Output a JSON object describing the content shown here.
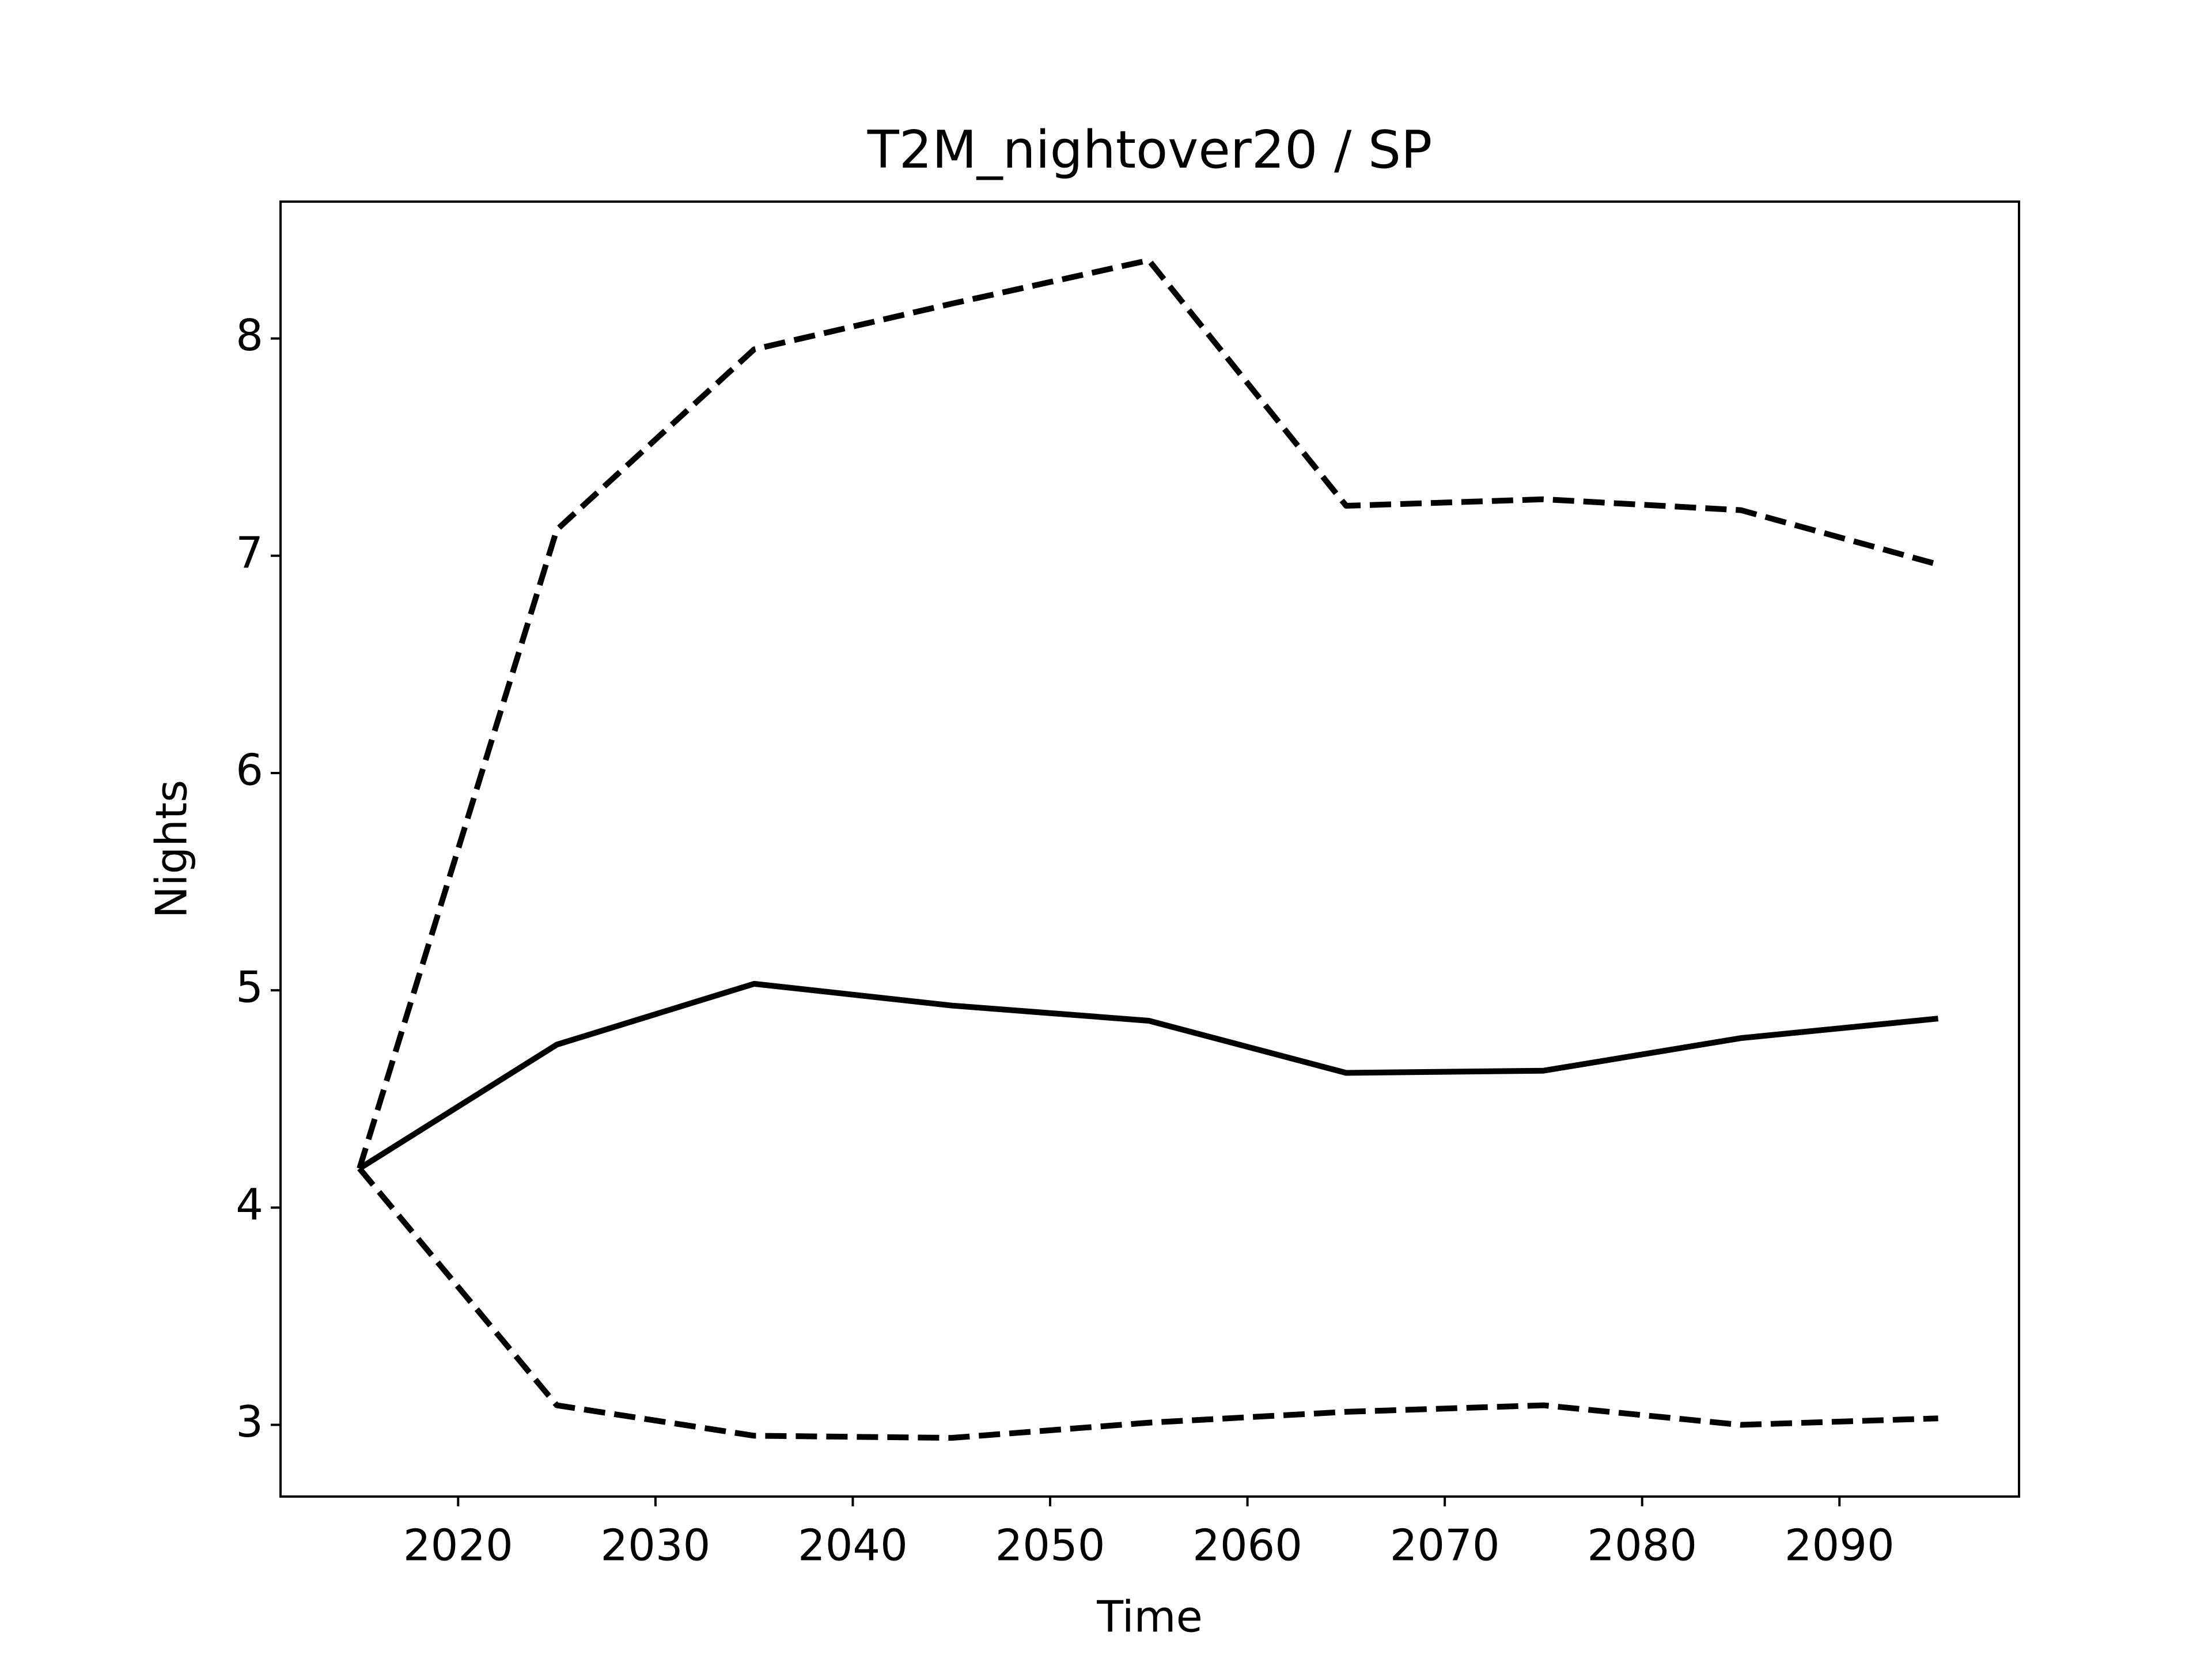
{
  "chart_data": {
    "type": "line",
    "title": "T2M_nightover20 / SP",
    "xlabel": "Time",
    "ylabel": "Nights",
    "x": [
      2015,
      2025,
      2035,
      2045,
      2055,
      2065,
      2075,
      2085,
      2095
    ],
    "series": [
      {
        "color": "#000000",
        "linestyle": "solid",
        "values": [
          4.18,
          4.75,
          5.03,
          4.93,
          4.86,
          4.62,
          4.63,
          4.78,
          4.87
        ]
      },
      {
        "color": "#000000",
        "linestyle": "dashed",
        "values": [
          4.18,
          7.12,
          7.95,
          8.16,
          8.36,
          7.23,
          7.26,
          7.21,
          6.96
        ]
      },
      {
        "color": "#000000",
        "linestyle": "dashed",
        "values": [
          4.18,
          3.09,
          2.95,
          2.94,
          3.01,
          3.06,
          3.09,
          3.0,
          3.03
        ]
      }
    ],
    "xlim": [
      2011.0,
      2099.1
    ],
    "xticks": [
      2020,
      2030,
      2040,
      2050,
      2060,
      2070,
      2080,
      2090
    ],
    "ylim": [
      2.67,
      8.63
    ],
    "yticks": [
      3,
      4,
      5,
      6,
      7,
      8
    ],
    "grid": false
  }
}
